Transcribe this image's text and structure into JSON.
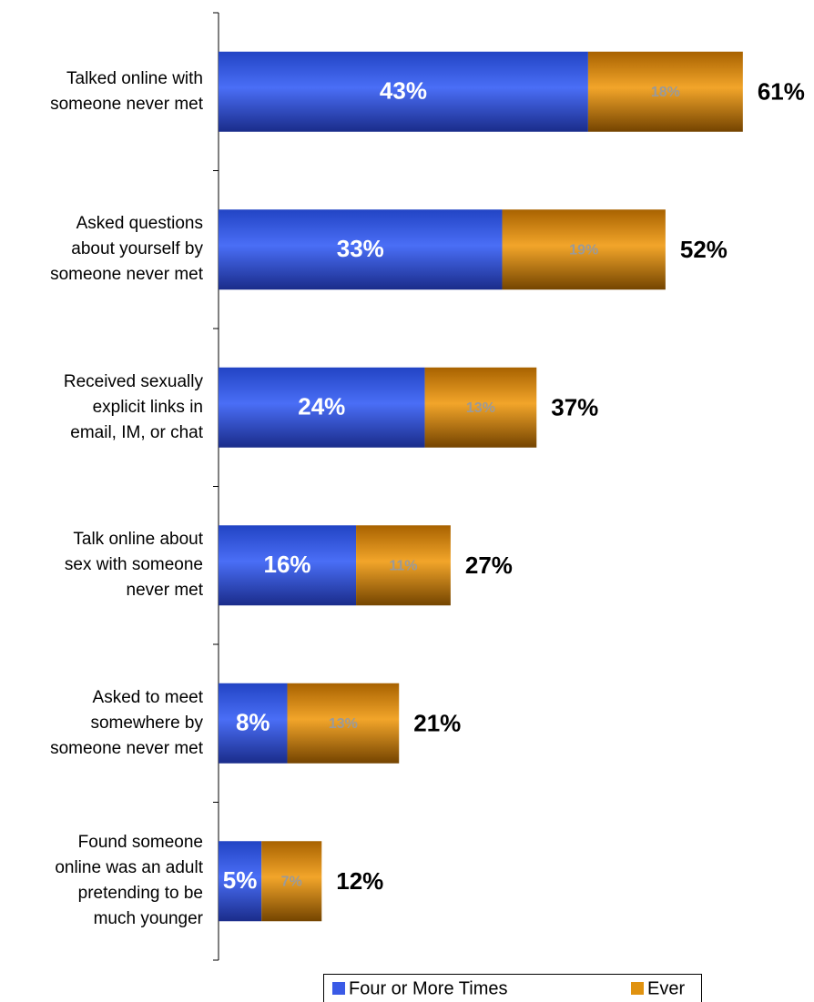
{
  "chart_data": {
    "type": "stacked-bar-horizontal",
    "categories": [
      "Talked online with\nsomeone never met",
      "Asked questions\nabout yourself by\nsomeone never met",
      "Received sexually\nexplicit links in\nemail, IM, or chat",
      "Talk online about\nsex with someone\nnever met",
      "Asked to meet\nsomewhere by\nsomeone never met",
      "Found someone\nonline was an adult\npretending to be\nmuch younger"
    ],
    "series": [
      {
        "name": "Four or More Times",
        "color": "#3a5ae6",
        "values": [
          43,
          33,
          24,
          16,
          8,
          5
        ],
        "value_labels": [
          "43%",
          "33%",
          "24%",
          "16%",
          "8%",
          "5%"
        ]
      },
      {
        "name": "Ever",
        "color": "#e0920f",
        "values": [
          18,
          19,
          13,
          11,
          13,
          7
        ],
        "value_labels": [
          "18%",
          "19%",
          "13%",
          "11%",
          "13%",
          "7%"
        ]
      }
    ],
    "totals": [
      61,
      52,
      37,
      27,
      21,
      12
    ],
    "total_labels": [
      "61%",
      "52%",
      "37%",
      "27%",
      "21%",
      "12%"
    ],
    "legend": "bottom"
  }
}
